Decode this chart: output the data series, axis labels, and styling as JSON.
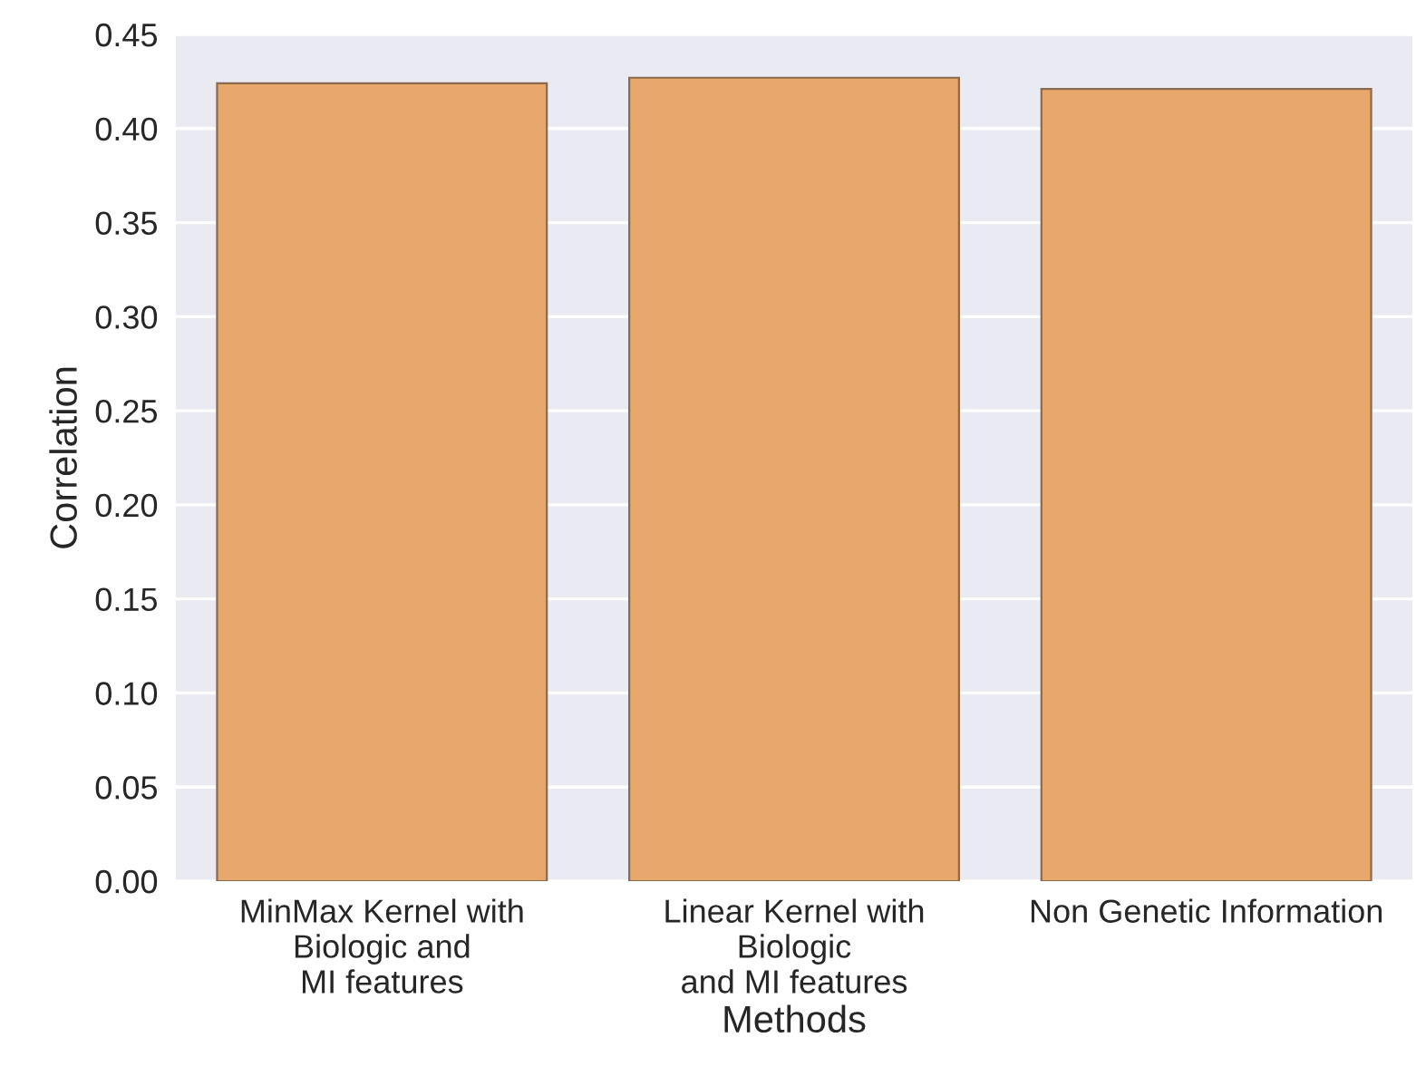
{
  "chart_data": {
    "type": "bar",
    "xlabel": "Methods",
    "ylabel": "Correlation",
    "categories": [
      "MinMax Kernel with\nBiologic and\nMI features",
      "Linear Kernel with\nBiologic\nand MI features",
      "Non Genetic Information"
    ],
    "values": [
      0.424,
      0.427,
      0.421
    ],
    "color": "#e8a76b",
    "ylim": [
      0,
      0.45
    ],
    "yticks": [
      {
        "value": 0,
        "label": "0.00"
      },
      0.05,
      {
        "value": 0.1,
        "label": "0.10"
      },
      0.15,
      {
        "value": 0.2,
        "label": "0.20"
      },
      0.25,
      {
        "value": 0.3,
        "label": "0.30"
      },
      0.35,
      {
        "value": 0.4,
        "label": "0.40"
      },
      0.45
    ],
    "grid": "y"
  }
}
